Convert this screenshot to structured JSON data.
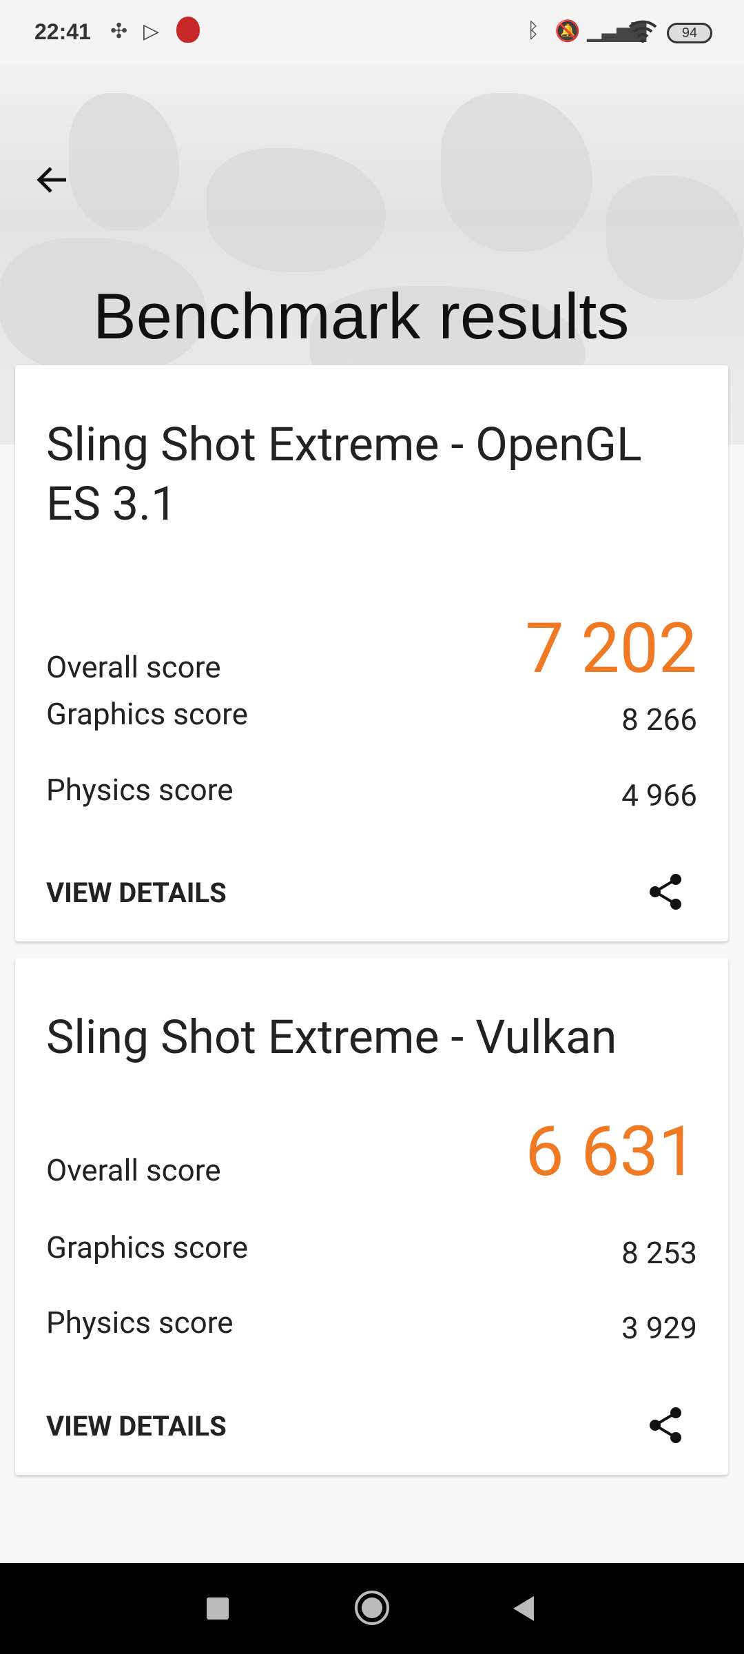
{
  "status_bar": {
    "time": "22:41",
    "battery": "94",
    "icons": [
      "pinwheel-icon",
      "play-store-icon",
      "antutu-icon",
      "bluetooth-icon",
      "bell-muted-icon",
      "signal-icon",
      "wifi-icon",
      "battery-icon"
    ]
  },
  "header": {
    "title": "Benchmark results",
    "back_icon": "arrow-left-icon"
  },
  "accent_color": "#f07a24",
  "cards": [
    {
      "title": "Sling Shot Extreme - OpenGL ES 3.1",
      "overall_label": "Overall score",
      "overall": "7 202",
      "graphics_label": "Graphics score",
      "graphics": "8 266",
      "physics_label": "Physics score",
      "physics": "4 966",
      "details_label": "VIEW DETAILS"
    },
    {
      "title": "Sling Shot Extreme - Vulkan",
      "overall_label": "Overall score",
      "overall": "6 631",
      "graphics_label": "Graphics score",
      "graphics": "8 253",
      "physics_label": "Physics score",
      "physics": "3 929",
      "details_label": "VIEW DETAILS"
    }
  ]
}
